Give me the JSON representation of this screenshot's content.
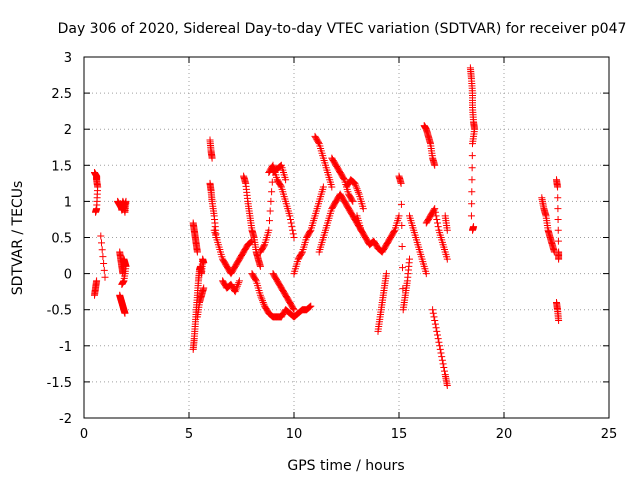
{
  "chart_data": {
    "type": "scatter",
    "title": "Day 306 of 2020, Sidereal Day-to-day VTEC variation (SDTVAR) for receiver p047",
    "xlabel": "GPS time / hours",
    "ylabel": "SDTVAR / TECUs",
    "xlim": [
      0,
      25
    ],
    "ylim": [
      -2,
      3
    ],
    "xticks": [
      0,
      5,
      10,
      15,
      20,
      25
    ],
    "yticks": [
      -2,
      -1.5,
      -1,
      -0.5,
      0,
      0.5,
      1,
      1.5,
      2,
      2.5,
      3
    ],
    "xtick_labels": [
      "0",
      "5",
      "10",
      "15",
      "20",
      "25"
    ],
    "ytick_labels": [
      "-2",
      "-1.5",
      "-1",
      "-0.5",
      "0",
      "0.5",
      "1",
      "1.5",
      "2",
      "2.5",
      "3"
    ],
    "grid": true,
    "marker": "+",
    "color": "#ff0000",
    "series": [
      {
        "name": "p047",
        "segments": [
          {
            "x": [
              0.5,
              0.6,
              0.6,
              0.65,
              0.6,
              0.55
            ],
            "y": [
              1.4,
              1.35,
              1.3,
              1.2,
              0.9,
              0.85
            ]
          },
          {
            "x": [
              0.5,
              0.55,
              0.6
            ],
            "y": [
              -0.3,
              -0.2,
              -0.1
            ]
          },
          {
            "x": [
              0.8,
              1.0
            ],
            "y": [
              0.52,
              -0.05
            ]
          },
          {
            "x": [
              1.6,
              1.7,
              1.8,
              1.85,
              1.9,
              1.95,
              2.0,
              1.9,
              1.8,
              1.75
            ],
            "y": [
              1.0,
              0.95,
              0.9,
              1.0,
              0.95,
              0.85,
              1.0,
              0.92,
              0.88,
              0.97
            ]
          },
          {
            "x": [
              1.7,
              1.75,
              1.8,
              1.85,
              1.9,
              1.95,
              2.0,
              1.9,
              1.8
            ],
            "y": [
              0.3,
              0.2,
              0.1,
              0.0,
              0.2,
              0.15,
              0.1,
              -0.1,
              -0.15
            ]
          },
          {
            "x": [
              1.7,
              1.75,
              1.8,
              1.85,
              1.9,
              1.95
            ],
            "y": [
              -0.3,
              -0.35,
              -0.4,
              -0.45,
              -0.5,
              -0.55
            ]
          },
          {
            "x": [
              5.2,
              5.25,
              5.3,
              5.35,
              5.4
            ],
            "y": [
              0.7,
              0.6,
              0.5,
              0.4,
              0.3
            ]
          },
          {
            "x": [
              5.2,
              5.25,
              5.3,
              5.35,
              5.4,
              5.45,
              5.5,
              5.55,
              5.6,
              5.65,
              5.7
            ],
            "y": [
              -1.05,
              -0.9,
              -0.7,
              -0.5,
              -0.3,
              -0.1,
              0.05,
              0.1,
              0.0,
              0.2,
              0.15
            ]
          },
          {
            "x": [
              5.4,
              5.5,
              5.6,
              5.7
            ],
            "y": [
              -0.6,
              -0.4,
              -0.3,
              -0.2
            ]
          },
          {
            "x": [
              6.0,
              6.05,
              6.1
            ],
            "y": [
              1.85,
              1.7,
              1.6
            ]
          },
          {
            "x": [
              6.2,
              6.4,
              6.6,
              6.8,
              7.0,
              7.2,
              7.4,
              7.6,
              7.8,
              8.0
            ],
            "y": [
              0.6,
              0.4,
              0.2,
              0.1,
              0.0,
              0.1,
              0.2,
              0.3,
              0.4,
              0.45
            ]
          },
          {
            "x": [
              6.0,
              6.05,
              6.1,
              6.2,
              6.3
            ],
            "y": [
              1.25,
              1.15,
              1.0,
              0.8,
              0.5
            ]
          },
          {
            "x": [
              6.6,
              6.8,
              7.0,
              7.2,
              7.4
            ],
            "y": [
              -0.1,
              -0.2,
              -0.15,
              -0.25,
              -0.1
            ]
          },
          {
            "x": [
              7.6,
              7.7,
              7.8,
              7.9,
              8.0,
              8.1,
              8.2,
              8.3,
              8.4
            ],
            "y": [
              1.35,
              1.25,
              1.0,
              0.8,
              0.6,
              0.5,
              0.3,
              0.2,
              0.1
            ]
          },
          {
            "x": [
              8.0,
              8.2,
              8.4,
              8.6,
              8.8,
              9.0,
              9.2,
              9.4,
              9.6,
              9.8,
              10.0,
              10.2,
              10.4,
              10.6,
              10.8
            ],
            "y": [
              0.0,
              -0.1,
              -0.3,
              -0.45,
              -0.55,
              -0.6,
              -0.6,
              -0.6,
              -0.5,
              -0.55,
              -0.6,
              -0.55,
              -0.5,
              -0.5,
              -0.45
            ]
          },
          {
            "x": [
              8.4,
              8.6,
              8.8,
              9.0,
              9.2,
              9.4,
              9.6
            ],
            "y": [
              0.3,
              0.4,
              0.6,
              1.4,
              1.45,
              1.5,
              1.3
            ]
          },
          {
            "x": [
              8.8,
              9.0,
              9.2,
              9.4,
              9.6,
              9.8,
              10.0
            ],
            "y": [
              1.4,
              1.5,
              1.3,
              1.2,
              1.0,
              0.8,
              0.5
            ]
          },
          {
            "x": [
              9.0,
              9.2,
              9.4,
              9.6,
              9.8,
              10.0
            ],
            "y": [
              0.0,
              -0.1,
              -0.2,
              -0.3,
              -0.4,
              -0.5
            ]
          },
          {
            "x": [
              10.0,
              10.2,
              10.4,
              10.6,
              10.8,
              11.0,
              11.2,
              11.4
            ],
            "y": [
              0.0,
              0.2,
              0.3,
              0.5,
              0.6,
              0.8,
              1.0,
              1.2
            ]
          },
          {
            "x": [
              11.0,
              11.2,
              11.4,
              11.6,
              11.8
            ],
            "y": [
              1.9,
              1.8,
              1.6,
              1.4,
              1.2
            ]
          },
          {
            "x": [
              11.2,
              11.4,
              11.6,
              11.8,
              12.0,
              12.2,
              12.4,
              12.6,
              12.8,
              13.0,
              13.2
            ],
            "y": [
              0.3,
              0.5,
              0.7,
              0.9,
              1.0,
              1.1,
              1.0,
              0.9,
              0.8,
              0.7,
              0.6
            ]
          },
          {
            "x": [
              11.8,
              12.0,
              12.2,
              12.4,
              12.6,
              12.8
            ],
            "y": [
              1.6,
              1.5,
              1.4,
              1.3,
              1.1,
              1.0
            ]
          },
          {
            "x": [
              12.5,
              12.7,
              12.9,
              13.1,
              13.3
            ],
            "y": [
              1.2,
              1.3,
              1.25,
              1.1,
              0.9
            ]
          },
          {
            "x": [
              13.0,
              13.2,
              13.4,
              13.6,
              13.8,
              14.0,
              14.2,
              14.4,
              14.6,
              14.8,
              15.0
            ],
            "y": [
              0.8,
              0.6,
              0.5,
              0.4,
              0.45,
              0.35,
              0.3,
              0.4,
              0.5,
              0.6,
              0.8
            ]
          },
          {
            "x": [
              14.0,
              14.1,
              14.2,
              14.3,
              14.4
            ],
            "y": [
              -0.8,
              -0.6,
              -0.4,
              -0.2,
              0.0
            ]
          },
          {
            "x": [
              15.0,
              15.1,
              15.2,
              15.3,
              15.4,
              15.5
            ],
            "y": [
              1.35,
              1.25,
              -0.5,
              -0.3,
              -0.1,
              0.2
            ]
          },
          {
            "x": [
              15.5,
              15.7,
              15.9,
              16.1,
              16.3
            ],
            "y": [
              0.8,
              0.6,
              0.4,
              0.2,
              0.0
            ]
          },
          {
            "x": [
              16.2,
              16.3,
              16.4,
              16.5,
              16.6,
              16.7
            ],
            "y": [
              2.05,
              2.0,
              1.9,
              1.8,
              1.6,
              1.5
            ]
          },
          {
            "x": [
              16.3,
              16.5,
              16.7,
              16.9,
              17.1,
              17.3
            ],
            "y": [
              0.7,
              0.8,
              0.9,
              0.6,
              0.4,
              0.2
            ]
          },
          {
            "x": [
              16.6,
              16.8,
              17.0,
              17.2,
              17.3
            ],
            "y": [
              -0.5,
              -0.8,
              -1.1,
              -1.4,
              -1.55
            ]
          },
          {
            "x": [
              17.2,
              17.3
            ],
            "y": [
              0.8,
              0.6
            ]
          },
          {
            "x": [
              18.4,
              18.45,
              18.5,
              18.5,
              18.55,
              18.6,
              18.5,
              18.45
            ],
            "y": [
              2.85,
              2.7,
              2.5,
              2.3,
              2.1,
              2.0,
              1.8,
              0.8
            ]
          },
          {
            "x": [
              18.5,
              18.55
            ],
            "y": [
              0.6,
              0.65
            ]
          },
          {
            "x": [
              21.8,
              21.9,
              22.0,
              22.1,
              22.2,
              22.3,
              22.4
            ],
            "y": [
              1.05,
              0.9,
              0.8,
              0.6,
              0.5,
              0.4,
              0.3
            ]
          },
          {
            "x": [
              22.5,
              22.55,
              22.6,
              22.6
            ],
            "y": [
              1.3,
              1.2,
              0.3,
              0.2
            ]
          },
          {
            "x": [
              22.5,
              22.55,
              22.6
            ],
            "y": [
              -0.4,
              -0.5,
              -0.65
            ]
          }
        ]
      }
    ]
  }
}
